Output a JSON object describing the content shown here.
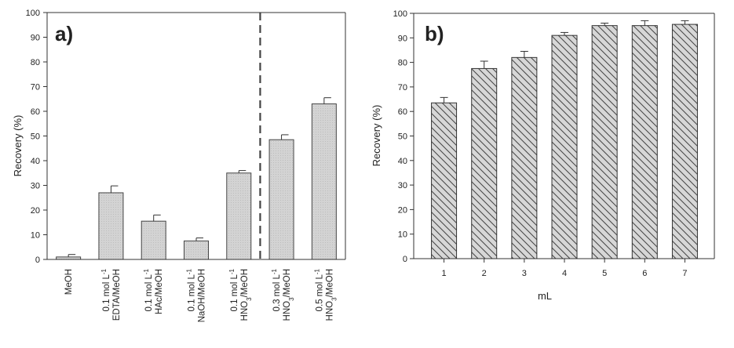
{
  "chart_data": [
    {
      "type": "bar",
      "panel_label": "a)",
      "ylabel": "Recovery (%)",
      "xlabel": "",
      "ylim": [
        0,
        100
      ],
      "yticks": [
        0,
        10,
        20,
        30,
        40,
        50,
        60,
        70,
        80,
        90,
        100
      ],
      "categories": [
        [
          "MeOH"
        ],
        [
          "0.1 mol L-1",
          "EDTA/MeOH"
        ],
        [
          "0.1 mol L-1",
          "HAc/MeOH"
        ],
        [
          "0.1 mol L-1",
          "NaOH/MeOH"
        ],
        [
          "0.1 mol L-1",
          "HNO3/MeOH"
        ],
        [
          "0.3 mol L-1",
          "HNO3/MeOH"
        ],
        [
          "0.5 mol L-1",
          "HNO3/MeOH"
        ]
      ],
      "values": [
        1,
        27,
        15.5,
        7.5,
        35,
        48.5,
        63
      ],
      "errors": [
        1,
        2.8,
        2.5,
        1.2,
        1,
        2,
        2.5
      ],
      "divider_after_index": 4,
      "bar_color": "#d3d3d3"
    },
    {
      "type": "bar",
      "panel_label": "b)",
      "ylabel": "Recovery (%)",
      "xlabel": "mL",
      "ylim": [
        0,
        100
      ],
      "yticks": [
        0,
        10,
        20,
        30,
        40,
        50,
        60,
        70,
        80,
        90,
        100
      ],
      "categories": [
        "1",
        "2",
        "3",
        "4",
        "5",
        "6",
        "7"
      ],
      "values": [
        63.5,
        77.5,
        82,
        91,
        95,
        95,
        95.5
      ],
      "errors": [
        2.2,
        3,
        2.5,
        1.2,
        1,
        2,
        1.5
      ],
      "bar_color": "#d7d7d7"
    }
  ]
}
